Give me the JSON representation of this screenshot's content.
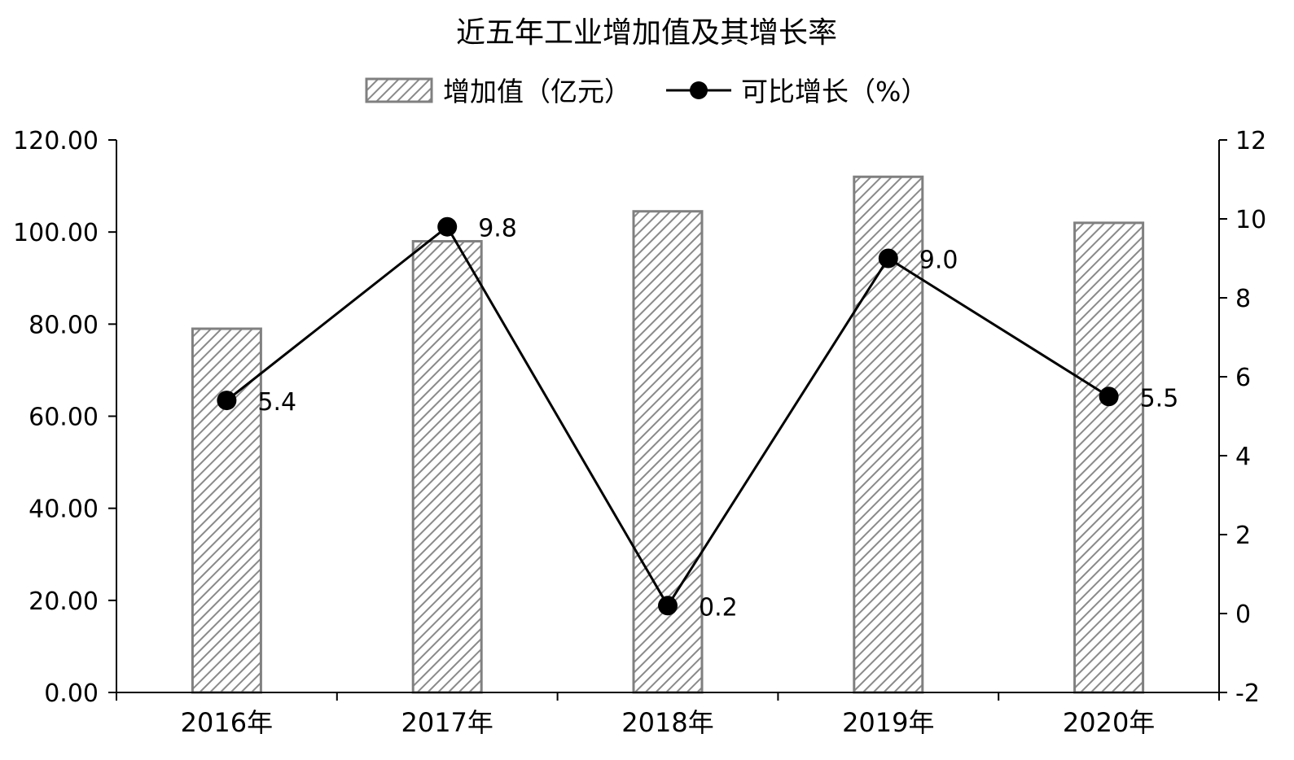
{
  "chart_data": {
    "type": "bar",
    "title": "近五年工业增加值及其增长率",
    "categories": [
      "2016年",
      "2017年",
      "2018年",
      "2019年",
      "2020年"
    ],
    "series": [
      {
        "name": "增加值（亿元）",
        "type": "bar",
        "axis": "left",
        "values": [
          79.0,
          98.0,
          104.5,
          112.0,
          102.0
        ]
      },
      {
        "name": "可比增长（%）",
        "type": "line",
        "axis": "right",
        "values": [
          5.4,
          9.8,
          0.2,
          9.0,
          5.5
        ],
        "data_labels": [
          "5.4",
          "9.8",
          "0.2",
          "9.0",
          "5.5"
        ]
      }
    ],
    "left_axis": {
      "ylim": [
        0,
        120
      ],
      "ticks": [
        "0.00",
        "20.00",
        "40.00",
        "60.00",
        "80.00",
        "100.00",
        "120.00"
      ]
    },
    "right_axis": {
      "ylim": [
        -2,
        12
      ],
      "ticks": [
        "-2",
        "0",
        "2",
        "4",
        "6",
        "8",
        "10",
        "12"
      ]
    },
    "legend_position": "top",
    "grid": false,
    "colors": {
      "bar_stroke": "#808080",
      "bar_hatch": "#8a8a8a",
      "line": "#000000",
      "axis": "#000000"
    }
  }
}
